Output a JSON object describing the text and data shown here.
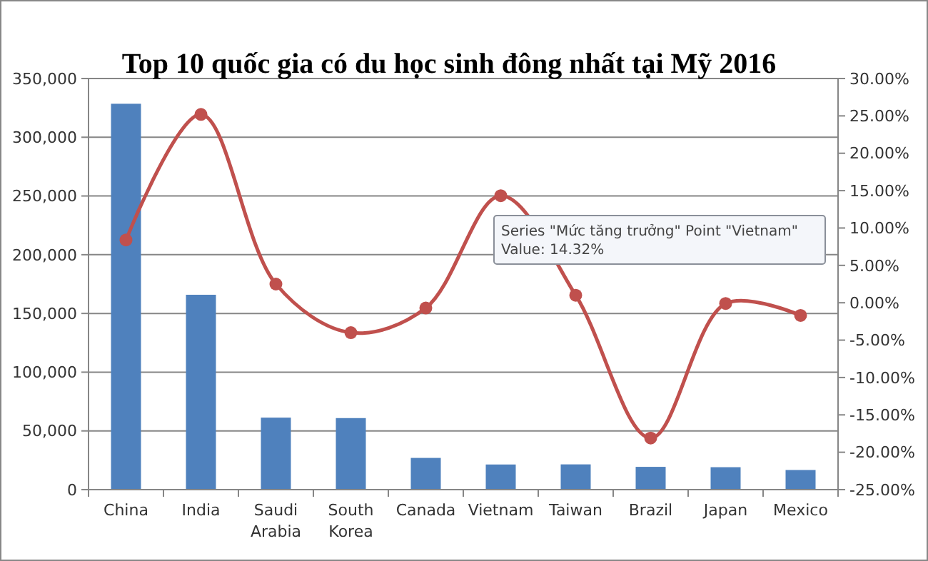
{
  "chart_data": {
    "type": "bar",
    "title": "Top 10  quốc gia có du học sinh đông nhất tại Mỹ 2016",
    "categories": [
      "China",
      "India",
      "Saudi Arabia",
      "South Korea",
      "Canada",
      "Vietnam",
      "Taiwan",
      "Brazil",
      "Japan",
      "Mexico"
    ],
    "series": [
      {
        "color": "#4f81bd",
        "values": [
          328500,
          165900,
          61300,
          60900,
          27000,
          21400,
          21500,
          19400,
          19100,
          16700
        ]
      },
      {
        "type": "line",
        "axis": "y2",
        "color": "#c0504d",
        "marker": "circle",
        "values": [
          8.4,
          25.2,
          2.5,
          -4.0,
          -0.7,
          14.32,
          1.0,
          -18.1,
          -0.1,
          -1.7
        ]
      }
    ],
    "ylim": [
      0,
      350000
    ],
    "yticks": [
      {
        "value": 0,
        "label": "0"
      },
      {
        "value": 50000,
        "label": "50,000"
      },
      {
        "value": 100000,
        "label": "100,000"
      },
      {
        "value": 150000,
        "label": "150,000"
      },
      {
        "value": 200000,
        "label": "200,000"
      },
      {
        "value": 250000,
        "label": "250,000"
      },
      {
        "value": 300000,
        "label": "300,000"
      },
      {
        "value": 350000,
        "label": "350,000"
      }
    ],
    "y2lim": [
      -25,
      30
    ],
    "y2ticks": [
      {
        "value": -25,
        "label": "-25.00%"
      },
      {
        "value": -20,
        "label": "-20.00%"
      },
      {
        "value": -15,
        "label": "-15.00%"
      },
      {
        "value": -10,
        "label": "-10.00%"
      },
      {
        "value": -5,
        "label": "-5.00%"
      },
      {
        "value": 0,
        "label": "0.00%"
      },
      {
        "value": 5,
        "label": "5.00%"
      },
      {
        "value": 10,
        "label": "10.00%"
      },
      {
        "value": 15,
        "label": "15.00%"
      },
      {
        "value": 20,
        "label": "20.00%"
      },
      {
        "value": 25,
        "label": "25.00%"
      },
      {
        "value": 30,
        "label": "30.00%"
      }
    ],
    "grid": "y",
    "annotations": [
      "Series \"Mức tăng trưởng\" Point \"Vietnam\"",
      "Value: 14.32%"
    ]
  }
}
